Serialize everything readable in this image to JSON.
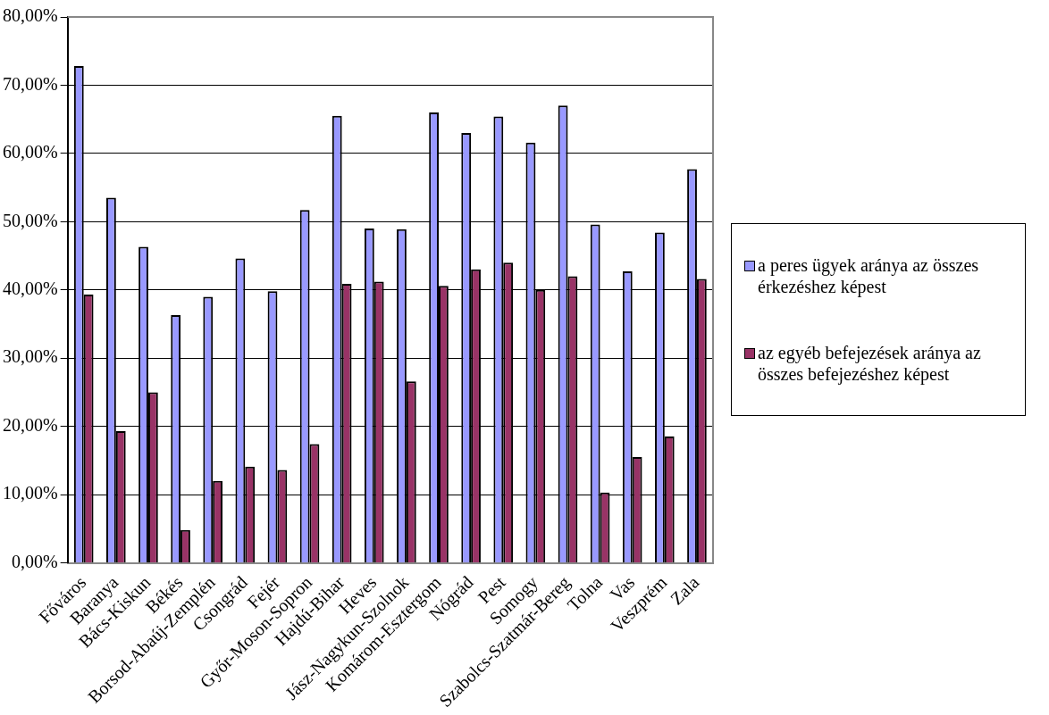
{
  "chart_data": {
    "type": "bar",
    "categories": [
      "Főváros",
      "Baranya",
      "Bács-Kiskun",
      "Békés",
      "Borsod-Abaúj-Zemplén",
      "Csongrád",
      "Fejér",
      "Győr-Moson-Sopron",
      "Hajdú-Bihar",
      "Heves",
      "Jász-Nagykun-Szolnok",
      "Komárom-Esztergom",
      "Nógrád",
      "Pest",
      "Somogy",
      "Szabolcs-Szatmár-Bereg",
      "Tolna",
      "Vas",
      "Veszprém",
      "Zala"
    ],
    "series": [
      {
        "name": "a peres ügyek aránya az összes érkezéshez képest",
        "color": "#9999ff",
        "values": [
          72.8,
          53.5,
          46.3,
          36.3,
          39.0,
          44.6,
          39.8,
          51.7,
          65.5,
          49.0,
          48.9,
          66.0,
          63.0,
          65.4,
          61.6,
          67.0,
          49.6,
          42.7,
          48.4,
          57.7
        ]
      },
      {
        "name": "az egyéb befejezések aránya az összes befejezéshez képest",
        "color": "#993366",
        "values": [
          39.3,
          19.3,
          25.0,
          4.8,
          12.0,
          14.1,
          13.6,
          17.4,
          40.9,
          41.2,
          26.6,
          40.6,
          43.0,
          44.0,
          40.0,
          42.0,
          10.3,
          15.5,
          18.5,
          41.6
        ]
      }
    ],
    "ylim": [
      0,
      80
    ],
    "yticks": [
      {
        "value": 0,
        "label": "0,00%"
      },
      {
        "value": 10,
        "label": "10,00%"
      },
      {
        "value": 20,
        "label": "20,00%"
      },
      {
        "value": 30,
        "label": "30,00%"
      },
      {
        "value": 40,
        "label": "40,00%"
      },
      {
        "value": 50,
        "label": "50,00%"
      },
      {
        "value": 60,
        "label": "60,00%"
      },
      {
        "value": 70,
        "label": "70,00%"
      },
      {
        "value": 80,
        "label": "80,00%"
      }
    ],
    "grid": "y",
    "legend": "right"
  }
}
